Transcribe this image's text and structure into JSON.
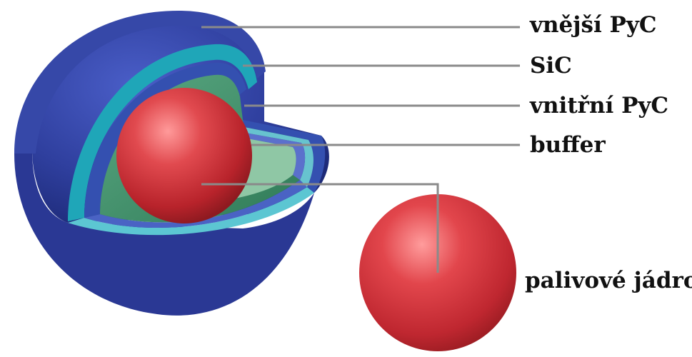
{
  "labels": {
    "outer_pyc": "vnější PyC",
    "sic": "SiC",
    "inner_pyc": "vnitřní PyC",
    "buffer": "buffer",
    "kernel": "palivové jádro"
  },
  "colors": {
    "outer_pyc": "#2f3f9e",
    "sic": "#1fa6b8",
    "inner_pyc": "#3450b0",
    "buffer": "#3f8f6a",
    "kernel": "#d8343a",
    "leader_line": "#8a8a8a"
  }
}
